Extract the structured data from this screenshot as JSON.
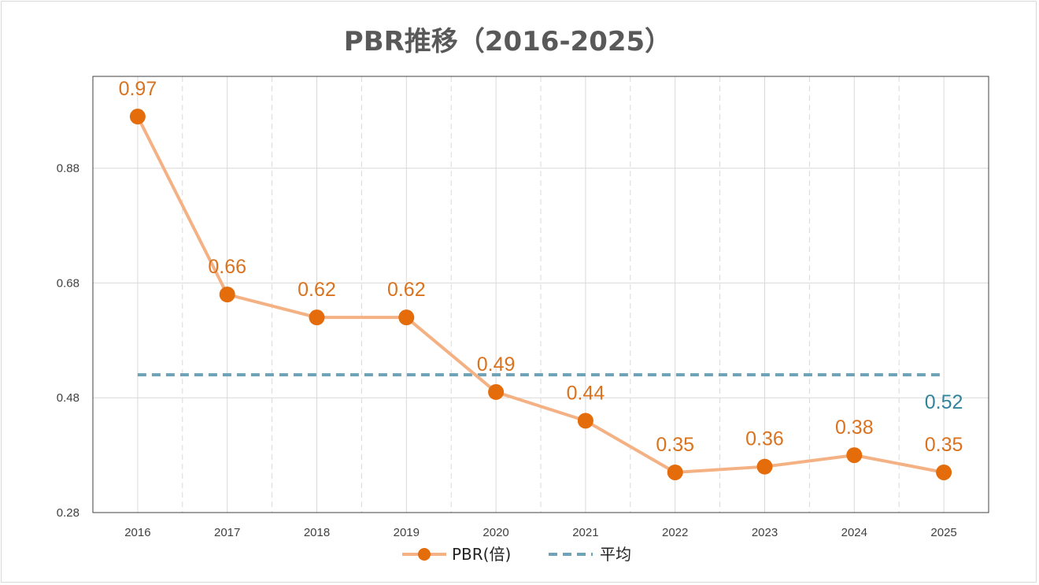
{
  "chart_data": {
    "type": "line",
    "title": "PBR推移（2016-2025）",
    "xlabel": "",
    "ylabel": "",
    "categories": [
      "2016",
      "2017",
      "2018",
      "2019",
      "2020",
      "2021",
      "2022",
      "2023",
      "2024",
      "2025"
    ],
    "series": [
      {
        "name": "PBR(倍)",
        "values": [
          0.97,
          0.66,
          0.62,
          0.62,
          0.49,
          0.44,
          0.35,
          0.36,
          0.38,
          0.35
        ],
        "labels": [
          "0.97",
          "0.66",
          "0.62",
          "0.62",
          "0.49",
          "0.44",
          "0.35",
          "0.36",
          "0.38",
          "0.35"
        ],
        "line_color": "#F4B183",
        "marker_color": "#E46C0A",
        "label_color": "#D9731F"
      },
      {
        "name": "平均",
        "value": 0.52,
        "label": "0.52",
        "style": "dashed",
        "color": "#6FA3B8",
        "label_color": "#31849B"
      }
    ],
    "yticks": [
      "0.28",
      "0.48",
      "0.68",
      "0.88"
    ],
    "ytick_values": [
      0.28,
      0.48,
      0.68,
      0.88
    ],
    "ylim": [
      0.28,
      1.04
    ],
    "grid": true,
    "legend_position": "bottom"
  }
}
